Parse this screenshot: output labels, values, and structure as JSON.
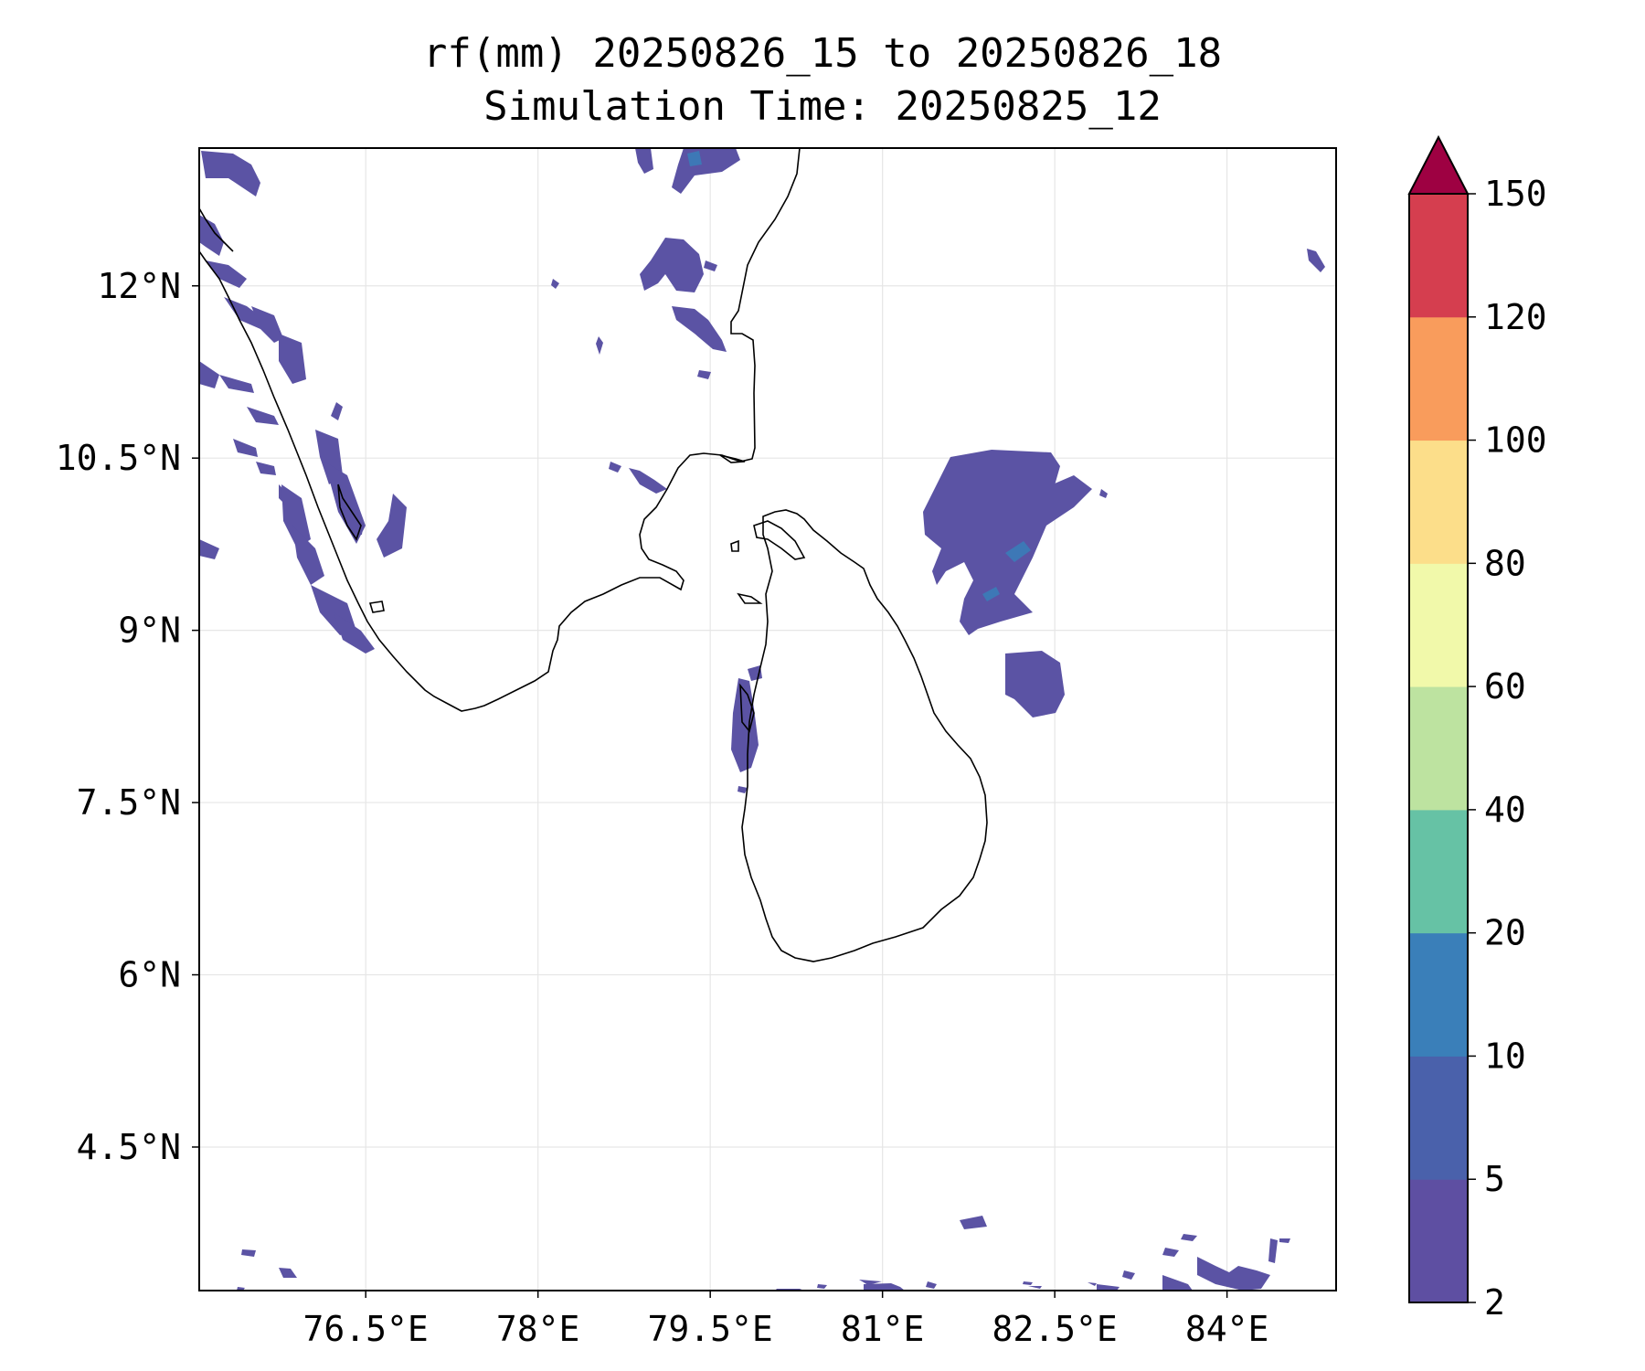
{
  "title": {
    "line1": "rf(mm) 20250826_15 to 20250826_18",
    "line2": "Simulation Time: 20250825_12"
  },
  "map": {
    "lon_ticks": [
      "76.5°E",
      "78°E",
      "79.5°E",
      "81°E",
      "82.5°E",
      "84°E"
    ],
    "lat_ticks": [
      "12°N",
      "10.5°N",
      "9°N",
      "7.5°N",
      "6°N",
      "4.5°N"
    ],
    "extent": {
      "lon": [
        75.05,
        84.95
      ],
      "lat": [
        3.25,
        13.2
      ]
    },
    "gridlines": true
  },
  "colorbar": {
    "levels": [
      "2",
      "5",
      "10",
      "20",
      "40",
      "60",
      "80",
      "100",
      "120",
      "150"
    ],
    "colors": [
      "#5e4fa2",
      "#4a61ab",
      "#3a7fb9",
      "#66c2a5",
      "#bde3a0",
      "#f1f9aa",
      "#fcde8a",
      "#f99c5c",
      "#d53e4f"
    ],
    "extend_color": "#9e0142",
    "extend": "max"
  },
  "chart_data": {
    "type": "heatmap",
    "title": "rf(mm) 20250826_15 to 20250826_18 Simulation Time: 20250825_12",
    "variable": "rf(mm)",
    "x_ticks": [
      76.5,
      78,
      79.5,
      81,
      82.5,
      84
    ],
    "y_ticks": [
      12,
      10.5,
      9,
      7.5,
      6,
      4.5
    ],
    "colorbar_levels": [
      2,
      5,
      10,
      20,
      40,
      60,
      80,
      100,
      120,
      150
    ],
    "grid": true
  }
}
